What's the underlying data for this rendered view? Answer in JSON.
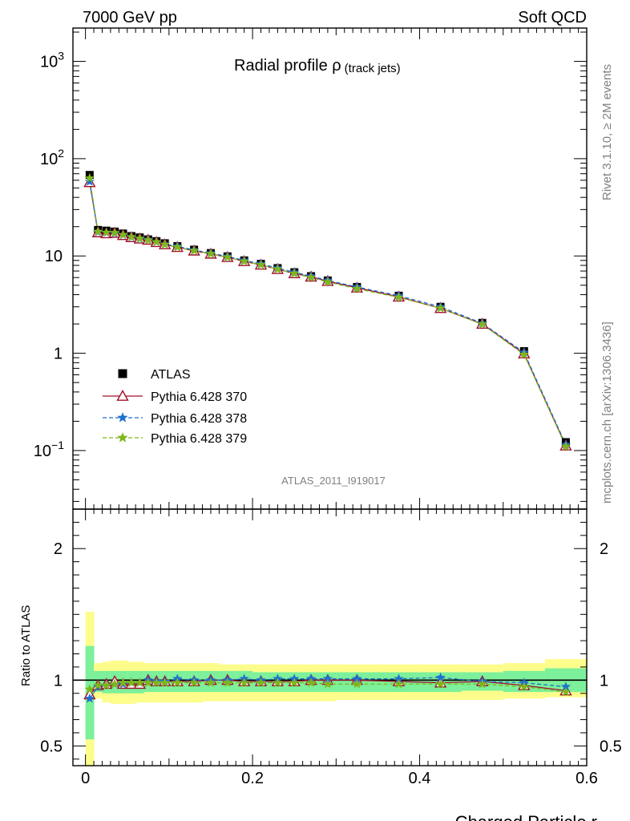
{
  "header": {
    "left": "7000 GeV pp",
    "right": "Soft QCD"
  },
  "side_labels": {
    "rivet": "Rivet 3.1.10, ≥ 2M events",
    "source": "mcplots.cern.ch [arXiv:1306.3436]"
  },
  "colors": {
    "data": "#000000",
    "mc370": "#a0102a",
    "mc378": "#1f6fd0",
    "mc379": "#7db81a",
    "band_stat": "#7cf09a",
    "band_total": "#fdfd8c"
  },
  "chart_data": [
    {
      "type": "scatter",
      "title": "Radial profile ρ",
      "title_suffix": "(track jets)",
      "analysis_label": "ATLAS_2011_I919017",
      "xlabel": "",
      "ylabel": "",
      "log_y": true,
      "xlim": [
        -0.015,
        0.6
      ],
      "ylim": [
        0.025,
        2200
      ],
      "y_ticks": [
        {
          "value": 0.1,
          "base": "10",
          "exp": "−1"
        },
        {
          "value": 1,
          "base": "1",
          "exp": ""
        },
        {
          "value": 10,
          "base": "10",
          "exp": ""
        },
        {
          "value": 100,
          "base": "10",
          "exp": "2"
        },
        {
          "value": 1000,
          "base": "10",
          "exp": "3"
        }
      ],
      "x": [
        0.005,
        0.015,
        0.025,
        0.035,
        0.045,
        0.055,
        0.065,
        0.075,
        0.085,
        0.095,
        0.11,
        0.13,
        0.15,
        0.17,
        0.19,
        0.21,
        0.23,
        0.25,
        0.27,
        0.29,
        0.325,
        0.375,
        0.425,
        0.475,
        0.525,
        0.575
      ],
      "series": [
        {
          "name": "ATLAS",
          "marker": "square",
          "values": [
            68,
            18.5,
            18.2,
            17.8,
            17.0,
            16.0,
            15.5,
            14.8,
            14.2,
            13.5,
            12.6,
            11.6,
            10.7,
            9.9,
            9.0,
            8.3,
            7.5,
            6.8,
            6.2,
            5.6,
            4.8,
            3.9,
            3.0,
            2.05,
            1.05,
            0.122
          ]
        },
        {
          "name": "Pythia 6.428 370",
          "marker": "triangle",
          "dash": "",
          "values": [
            57,
            17.4,
            17.0,
            17.2,
            16.3,
            15.5,
            15.0,
            14.6,
            13.8,
            13.1,
            12.3,
            11.3,
            10.5,
            9.7,
            8.8,
            8.1,
            7.3,
            6.6,
            6.1,
            5.5,
            4.7,
            3.8,
            2.9,
            2.0,
            0.99,
            0.112
          ]
        },
        {
          "name": "Pythia 6.428 378",
          "marker": "star",
          "dash": "5,3",
          "values": [
            58,
            17.6,
            17.3,
            17.1,
            16.4,
            15.6,
            15.0,
            14.7,
            13.9,
            13.2,
            12.6,
            11.5,
            10.7,
            9.9,
            9.0,
            8.3,
            7.5,
            6.8,
            6.2,
            5.6,
            4.8,
            3.9,
            3.0,
            2.03,
            1.02,
            0.115
          ]
        },
        {
          "name": "Pythia 6.428 379",
          "marker": "star",
          "dash": "5,3",
          "values": [
            63,
            17.8,
            17.4,
            17.3,
            16.5,
            15.7,
            15.1,
            14.5,
            13.9,
            13.1,
            12.3,
            11.3,
            10.5,
            9.7,
            8.8,
            8.1,
            7.3,
            6.6,
            6.0,
            5.4,
            4.6,
            3.75,
            2.9,
            1.98,
            0.97,
            0.11
          ]
        }
      ]
    },
    {
      "type": "line",
      "title": "",
      "xlabel": "Charged Particle r",
      "ylabel": "Ratio to ATLAS",
      "xlim": [
        -0.015,
        0.6
      ],
      "ylim": [
        0.35,
        2.3
      ],
      "x_ticks": [
        0,
        0.2,
        0.4,
        0.6
      ],
      "x_tick_labels": [
        "0",
        "0.2",
        "0.4",
        "0.6"
      ],
      "y_ticks": [
        0.5,
        1,
        2
      ],
      "y_tick_labels": [
        "0.5",
        "1",
        "2"
      ],
      "bins": [
        [
          0,
          0.01
        ],
        [
          0.01,
          0.02
        ],
        [
          0.02,
          0.03
        ],
        [
          0.03,
          0.04
        ],
        [
          0.04,
          0.05
        ],
        [
          0.05,
          0.06
        ],
        [
          0.06,
          0.07
        ],
        [
          0.07,
          0.08
        ],
        [
          0.08,
          0.09
        ],
        [
          0.09,
          0.1
        ],
        [
          0.1,
          0.12
        ],
        [
          0.12,
          0.14
        ],
        [
          0.14,
          0.16
        ],
        [
          0.16,
          0.18
        ],
        [
          0.18,
          0.2
        ],
        [
          0.2,
          0.22
        ],
        [
          0.22,
          0.24
        ],
        [
          0.24,
          0.26
        ],
        [
          0.26,
          0.28
        ],
        [
          0.28,
          0.3
        ],
        [
          0.3,
          0.35
        ],
        [
          0.35,
          0.4
        ],
        [
          0.4,
          0.45
        ],
        [
          0.45,
          0.5
        ],
        [
          0.5,
          0.55
        ],
        [
          0.55,
          0.6
        ]
      ],
      "band_total": [
        [
          0.35,
          1.52
        ],
        [
          0.86,
          1.13
        ],
        [
          0.83,
          1.14
        ],
        [
          0.82,
          1.15
        ],
        [
          0.82,
          1.15
        ],
        [
          0.82,
          1.14
        ],
        [
          0.83,
          1.14
        ],
        [
          0.83,
          1.13
        ],
        [
          0.83,
          1.13
        ],
        [
          0.83,
          1.13
        ],
        [
          0.83,
          1.13
        ],
        [
          0.83,
          1.13
        ],
        [
          0.84,
          1.13
        ],
        [
          0.84,
          1.12
        ],
        [
          0.84,
          1.12
        ],
        [
          0.84,
          1.12
        ],
        [
          0.84,
          1.12
        ],
        [
          0.84,
          1.12
        ],
        [
          0.84,
          1.12
        ],
        [
          0.84,
          1.12
        ],
        [
          0.85,
          1.12
        ],
        [
          0.85,
          1.12
        ],
        [
          0.85,
          1.12
        ],
        [
          0.85,
          1.12
        ],
        [
          0.86,
          1.13
        ],
        [
          0.87,
          1.16
        ]
      ],
      "band_stat": [
        [
          0.55,
          1.26
        ],
        [
          0.91,
          1.07
        ],
        [
          0.9,
          1.07
        ],
        [
          0.9,
          1.07
        ],
        [
          0.9,
          1.07
        ],
        [
          0.9,
          1.07
        ],
        [
          0.9,
          1.07
        ],
        [
          0.91,
          1.07
        ],
        [
          0.91,
          1.07
        ],
        [
          0.91,
          1.07
        ],
        [
          0.91,
          1.07
        ],
        [
          0.91,
          1.07
        ],
        [
          0.91,
          1.07
        ],
        [
          0.91,
          1.07
        ],
        [
          0.91,
          1.07
        ],
        [
          0.91,
          1.06
        ],
        [
          0.91,
          1.06
        ],
        [
          0.91,
          1.06
        ],
        [
          0.91,
          1.06
        ],
        [
          0.91,
          1.06
        ],
        [
          0.91,
          1.06
        ],
        [
          0.91,
          1.06
        ],
        [
          0.91,
          1.06
        ],
        [
          0.92,
          1.06
        ],
        [
          0.91,
          1.07
        ],
        [
          0.91,
          1.09
        ]
      ],
      "series": [
        {
          "name": "Pythia 6.428 370",
          "marker": "triangle",
          "dash": "",
          "values": [
            0.89,
            0.96,
            0.97,
            0.99,
            0.97,
            0.97,
            0.97,
            1.0,
            0.99,
            0.99,
            0.99,
            0.99,
            1.0,
            1.0,
            0.99,
            0.99,
            0.99,
            0.99,
            1.0,
            1.0,
            1.0,
            0.99,
            0.98,
            0.99,
            0.96,
            0.92
          ]
        },
        {
          "name": "Pythia 6.428 378",
          "marker": "star",
          "dash": "5,3",
          "values": [
            0.86,
            0.95,
            0.96,
            0.97,
            0.97,
            0.98,
            0.98,
            1.0,
            0.99,
            0.99,
            1.01,
            1.0,
            1.0,
            1.0,
            1.01,
            1.0,
            1.01,
            1.01,
            1.01,
            1.01,
            1.01,
            1.01,
            1.02,
            0.99,
            0.98,
            0.95
          ]
        },
        {
          "name": "Pythia 6.428 379",
          "marker": "star",
          "dash": "5,3",
          "values": [
            0.93,
            0.96,
            0.96,
            0.97,
            0.98,
            0.98,
            0.98,
            0.98,
            0.98,
            0.98,
            0.98,
            0.98,
            0.98,
            0.98,
            0.98,
            0.98,
            0.98,
            0.98,
            0.98,
            0.97,
            0.97,
            0.97,
            0.97,
            0.97,
            0.95,
            0.91
          ]
        }
      ]
    }
  ]
}
